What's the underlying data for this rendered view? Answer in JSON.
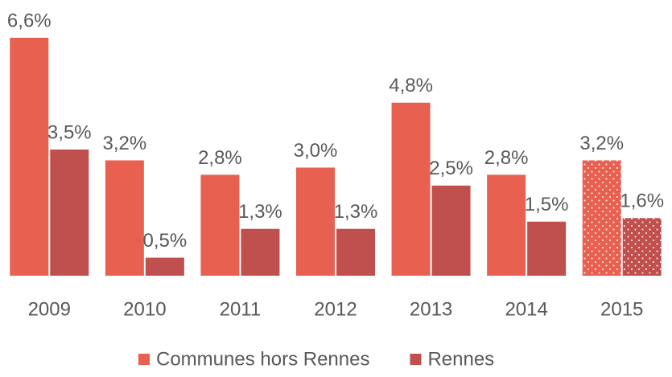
{
  "chart_data": {
    "type": "bar",
    "categories": [
      "2009",
      "2010",
      "2011",
      "2012",
      "2013",
      "2014",
      "2015"
    ],
    "series": [
      {
        "name": "Communes hors Rennes",
        "color": "#e8604f",
        "values": [
          6.6,
          3.2,
          2.8,
          3.0,
          4.8,
          2.8,
          3.2
        ],
        "value_labels": [
          "6,6%",
          "3,2%",
          "2,8%",
          "3,0%",
          "4,8%",
          "2,8%",
          "3,2%"
        ]
      },
      {
        "name": "Rennes",
        "color": "#c0504d",
        "values": [
          3.5,
          0.5,
          1.3,
          1.3,
          2.5,
          1.5,
          1.6
        ],
        "value_labels": [
          "3,5%",
          "0,5%",
          "1,3%",
          "1,3%",
          "2,5%",
          "1,5%",
          "1,6%"
        ]
      }
    ],
    "patterned": [
      false,
      false,
      false,
      false,
      false,
      false,
      true
    ],
    "legend": "bottom"
  }
}
